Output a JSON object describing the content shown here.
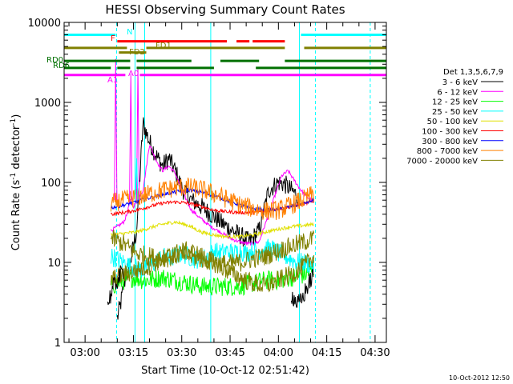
{
  "chart_data": {
    "type": "line",
    "title": "HESSI Observing Summary Count Rates",
    "xlabel": "Start Time (10-Oct-12 02:51:42)",
    "ylabel_main": "Count Rate (s",
    "ylabel_sup1": "-1",
    "ylabel_mid": " detector",
    "ylabel_sup2": "-1",
    "ylabel_end": ")",
    "yscale": "log",
    "ylim": [
      1,
      10000
    ],
    "xlim_minutes": [
      -6.5,
      93.5
    ],
    "xtick_labels": [
      "03:00",
      "03:15",
      "03:30",
      "03:45",
      "04:00",
      "04:15",
      "04:30"
    ],
    "xtick_minutes": [
      0,
      15,
      30,
      45,
      60,
      75,
      90
    ],
    "ytick_labels": [
      "1",
      "10",
      "100",
      "1000",
      "10000"
    ],
    "ytick_values": [
      1,
      10,
      100,
      1000,
      10000
    ],
    "footer_date": "10-Oct-2012 12:50",
    "legend_header": "Det 1,3,5,6,7,9",
    "legend": [
      {
        "name": "3 - 6 keV",
        "color": "#000000"
      },
      {
        "name": "6 - 12 keV",
        "color": "#ff00ff"
      },
      {
        "name": "12 - 25 keV",
        "color": "#00ff00"
      },
      {
        "name": "25 - 50 keV",
        "color": "#00ffff"
      },
      {
        "name": "50 - 100 keV",
        "color": "#e0e000"
      },
      {
        "name": "100 - 300 keV",
        "color": "#ff0000"
      },
      {
        "name": "300 - 800 keV",
        "color": "#0000ff"
      },
      {
        "name": "800 - 7000 keV",
        "color": "#ff8000"
      },
      {
        "name": "7000 - 20000 keV",
        "color": "#808000"
      }
    ],
    "series": [
      {
        "name": "3 - 6 keV",
        "color": "#000000",
        "x": [
          10,
          11,
          12,
          13,
          14,
          16,
          18,
          20,
          22,
          24,
          26,
          28,
          30,
          33,
          36,
          39,
          42,
          45,
          48,
          51,
          54,
          57,
          60,
          62,
          64,
          66
        ],
        "y": [
          2,
          3,
          5,
          8,
          10,
          25,
          550,
          320,
          220,
          160,
          200,
          140,
          85,
          60,
          50,
          40,
          32,
          26,
          22,
          18,
          25,
          80,
          100,
          95,
          80,
          68
        ]
      },
      {
        "name": "6 - 12 keV",
        "color": "#ff00ff",
        "x": [
          8,
          10,
          12,
          13,
          14,
          15,
          16,
          18,
          20,
          22,
          24,
          26,
          28,
          30,
          33,
          36,
          39,
          42,
          45,
          48,
          51,
          54,
          57,
          59,
          61,
          63,
          65,
          67,
          69,
          71
        ],
        "y": [
          25,
          28,
          32,
          40,
          60,
          50,
          58,
          80,
          300,
          190,
          140,
          160,
          130,
          80,
          45,
          35,
          28,
          24,
          20,
          18,
          17,
          18,
          40,
          70,
          120,
          140,
          105,
          80,
          65,
          58
        ]
      },
      {
        "name": "12 - 25 keV",
        "color": "#00ff00",
        "x": [
          8,
          12,
          15,
          18,
          20,
          24,
          28,
          32,
          36,
          40,
          44,
          48,
          52,
          56,
          60,
          64,
          68,
          71
        ],
        "y": [
          5,
          6,
          6.5,
          6,
          6,
          6.5,
          6,
          5.5,
          5,
          5,
          5,
          5,
          5.5,
          6,
          6,
          6.5,
          7,
          8
        ]
      },
      {
        "name": "25 - 50 keV",
        "color": "#00ffff",
        "x": [
          8,
          10,
          12,
          14,
          16,
          18,
          20,
          22,
          24,
          26,
          28,
          30,
          32,
          34,
          36,
          38,
          40,
          42,
          44,
          46,
          48,
          50,
          52,
          54,
          56,
          58,
          60,
          62,
          64,
          66,
          68,
          71
        ],
        "y": [
          12,
          11,
          10,
          9,
          8.5,
          8,
          9,
          10,
          12,
          11,
          12,
          13,
          12,
          11,
          11,
          12,
          14,
          13,
          14,
          13,
          14,
          13,
          14,
          14,
          15,
          15,
          13,
          12,
          11,
          10,
          10,
          9
        ]
      },
      {
        "name": "50 - 100 keV",
        "color": "#e0e000",
        "x": [
          8,
          12,
          16,
          20,
          24,
          28,
          32,
          36,
          40,
          44,
          48,
          52,
          56,
          60,
          64,
          68,
          71
        ],
        "y": [
          22,
          23,
          24,
          27,
          30,
          32,
          29,
          24,
          22,
          21,
          21,
          22,
          24,
          26,
          28,
          29,
          30
        ]
      },
      {
        "name": "100 - 300 keV",
        "color": "#ff0000",
        "x": [
          8,
          12,
          16,
          20,
          24,
          28,
          32,
          36,
          40,
          44,
          48,
          52,
          56,
          60,
          64,
          68,
          71
        ],
        "y": [
          40,
          42,
          45,
          50,
          55,
          57,
          55,
          50,
          45,
          43,
          42,
          42,
          44,
          47,
          50,
          54,
          58
        ]
      },
      {
        "name": "300 - 800 keV",
        "color": "#0000ff",
        "x": [
          8,
          12,
          16,
          20,
          24,
          28,
          32,
          36,
          40,
          44,
          48,
          52,
          56,
          60,
          64,
          68,
          71
        ],
        "y": [
          48,
          52,
          58,
          64,
          70,
          76,
          80,
          76,
          68,
          60,
          52,
          47,
          45,
          46,
          50,
          55,
          60
        ]
      },
      {
        "name": "800 - 7000 keV",
        "color": "#ff8000",
        "x": [
          8,
          12,
          16,
          20,
          24,
          28,
          32,
          36,
          40,
          44,
          48,
          52,
          56,
          60,
          64,
          68,
          71
        ],
        "y": [
          55,
          60,
          65,
          72,
          80,
          86,
          88,
          82,
          72,
          62,
          53,
          47,
          44,
          45,
          52,
          62,
          72
        ]
      },
      {
        "name": "7000 - 20000 keV",
        "color": "#808000",
        "x": [
          8,
          12,
          16,
          20,
          24,
          28,
          30,
          32,
          36,
          40,
          44,
          48,
          52,
          56,
          60,
          64,
          68,
          71
        ],
        "y": [
          20,
          17,
          13,
          12,
          11,
          12,
          13,
          12,
          11,
          10,
          9.5,
          10,
          11,
          12,
          14,
          16,
          18,
          20
        ]
      },
      {
        "name": "7000 - 20000 keV",
        "color": "#808000",
        "x": [
          8,
          12,
          16,
          20,
          24,
          28,
          32,
          36,
          40,
          44,
          48,
          52,
          56,
          60,
          64,
          68,
          71
        ],
        "y": [
          6,
          7,
          8,
          9,
          11,
          13,
          14,
          12,
          10,
          8,
          6.5,
          5.5,
          5,
          6,
          7,
          9,
          12
        ]
      },
      {
        "name": "3 - 6 keV",
        "color": "#000000",
        "x": [
          7,
          8,
          9,
          10,
          11,
          12
        ],
        "y": [
          3,
          4,
          5,
          6,
          7,
          8
        ]
      },
      {
        "name": "3 - 6 keV",
        "color": "#000000",
        "x": [
          64,
          65,
          66,
          67,
          68,
          69,
          70,
          71
        ],
        "y": [
          4,
          3.5,
          3,
          3.2,
          4,
          5,
          6,
          7
        ]
      }
    ],
    "spikes": [
      {
        "color": "#ff00ff",
        "x": 9.5,
        "y": 3500
      },
      {
        "color": "#ff00ff",
        "x": 14.2,
        "y": 2200
      },
      {
        "color": "#ff00ff",
        "x": 16.4,
        "y": 2800
      },
      {
        "color": "#00ffff",
        "x": 16.0,
        "y": 200
      }
    ],
    "mode_bars": [
      {
        "label": "N",
        "color": "#00ffff",
        "y": 7000,
        "segments": [
          [
            -6.5,
            9.5
          ],
          [
            67,
            93.5
          ]
        ]
      },
      {
        "label": "F",
        "color": "#ff0000",
        "y": 5800,
        "segments": [
          [
            10,
            44
          ],
          [
            47,
            51
          ],
          [
            52,
            62
          ]
        ]
      },
      {
        "label": "FD1",
        "color": "#808000",
        "y": 4800,
        "segments": [
          [
            -6.5,
            13
          ],
          [
            19,
            62
          ],
          [
            68,
            93.5
          ]
        ]
      },
      {
        "label": "FD2",
        "color": "#808000",
        "y": 4200,
        "segments": [
          [
            10.5,
            19
          ]
        ]
      },
      {
        "label": "RD0",
        "color": "#007000",
        "y": 3300,
        "segments": [
          [
            -6.5,
            14
          ],
          [
            16,
            33
          ],
          [
            42,
            54
          ],
          [
            62,
            93.5
          ]
        ]
      },
      {
        "label": "RD6",
        "color": "#007000",
        "y": 2700,
        "segments": [
          [
            -6.5,
            8
          ],
          [
            10,
            14
          ],
          [
            16,
            40
          ],
          [
            53,
            93.5
          ]
        ]
      },
      {
        "label": "A1",
        "color": "#ff00ff",
        "y": 2200,
        "segments": [
          [
            -6.5,
            12.5
          ]
        ]
      },
      {
        "label": "A0",
        "color": "#ff00ff",
        "y": 2200,
        "segments": [
          [
            17,
            93.5
          ]
        ]
      }
    ],
    "vertical_lines": [
      {
        "x": -6.5,
        "style": "solid",
        "color": "#00ffff"
      },
      {
        "x": 9.8,
        "style": "dashed",
        "color": "#00ffff"
      },
      {
        "x": 15.5,
        "style": "solid",
        "color": "#00ffff"
      },
      {
        "x": 18.5,
        "style": "solid",
        "color": "#00ffff"
      },
      {
        "x": 39.0,
        "style": "solid",
        "color": "#00ffff"
      },
      {
        "x": 66.5,
        "style": "solid",
        "color": "#00ffff"
      },
      {
        "x": 71.5,
        "style": "dashed",
        "color": "#00ffff"
      },
      {
        "x": 88.5,
        "style": "dashed",
        "color": "#00ffff"
      }
    ]
  }
}
